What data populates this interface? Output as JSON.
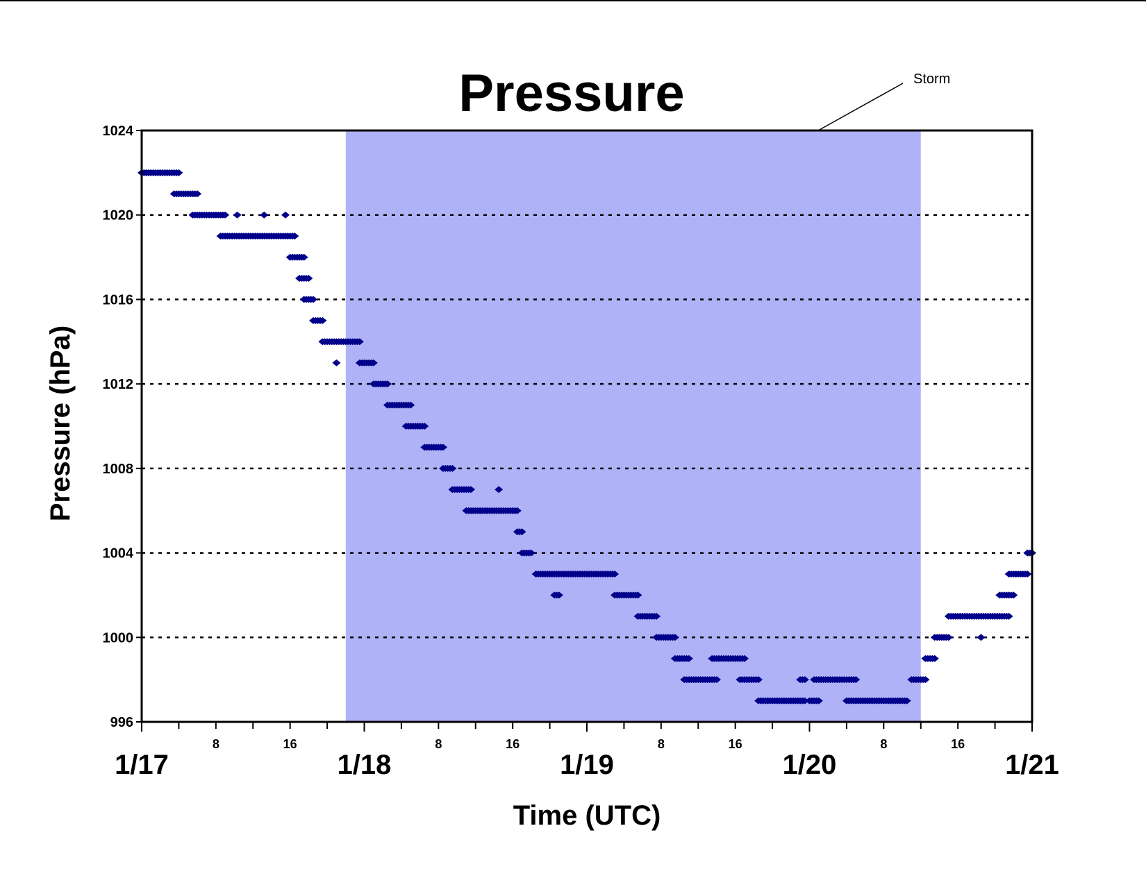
{
  "chart_data": {
    "type": "scatter",
    "title": "Pressure",
    "xlabel": "Time (UTC)",
    "ylabel": "Pressure (hPa)",
    "ylim": [
      996,
      1024
    ],
    "yticks": [
      "1024",
      "1020",
      "1016",
      "1012",
      "1008",
      "1004",
      "1000",
      "996"
    ],
    "xlim_hours": [
      0,
      96
    ],
    "x_date_labels": [
      "1/17",
      "1/18",
      "1/19",
      "1/20",
      "1/21"
    ],
    "x_hour_labels": [
      "8",
      "16"
    ],
    "grid": "horizontal dotted",
    "marker_color": "#00008b",
    "annotation": {
      "text": "Storm",
      "shaded_hours": [
        22,
        84
      ],
      "color": "#b0b2f8"
    },
    "series": [
      {
        "segments": [
          [
            0,
            4,
            1022
          ],
          [
            3.5,
            6,
            1021
          ],
          [
            5.5,
            9,
            1020
          ],
          [
            10.3,
            10.3,
            1020
          ],
          [
            13.2,
            13.2,
            1020
          ],
          [
            15.5,
            15.5,
            1020
          ],
          [
            8.5,
            16.5,
            1019
          ],
          [
            16,
            17.5,
            1018
          ],
          [
            17,
            18,
            1017
          ],
          [
            17.5,
            18.5,
            1016
          ],
          [
            18.5,
            19.5,
            1015
          ],
          [
            19.5,
            23.5,
            1014
          ],
          [
            21,
            21,
            1013
          ],
          [
            23.5,
            25,
            1013
          ],
          [
            25,
            26.5,
            1012
          ],
          [
            26.5,
            29,
            1011
          ],
          [
            28.5,
            30.5,
            1010
          ],
          [
            30.5,
            32.5,
            1009
          ],
          [
            32.5,
            33.5,
            1008
          ],
          [
            33.5,
            35.5,
            1007
          ],
          [
            38.5,
            38.5,
            1007
          ],
          [
            35,
            40.5,
            1006
          ],
          [
            40.5,
            41,
            1005
          ],
          [
            41,
            42,
            1004
          ],
          [
            42.5,
            51,
            1003
          ],
          [
            44.5,
            45,
            1002
          ],
          [
            51,
            53.5,
            1002
          ],
          [
            53.5,
            55.5,
            1001
          ],
          [
            55.5,
            57.5,
            1000
          ],
          [
            57.5,
            59,
            999
          ],
          [
            61.5,
            65,
            999
          ],
          [
            58.5,
            62,
            998
          ],
          [
            64.5,
            66.5,
            998
          ],
          [
            71,
            71.5,
            998
          ],
          [
            72.5,
            77,
            998
          ],
          [
            83,
            84.5,
            998
          ],
          [
            66.5,
            71.5,
            997
          ],
          [
            72,
            73,
            997
          ],
          [
            76,
            82.5,
            997
          ],
          [
            84.5,
            85.5,
            999
          ],
          [
            85.5,
            87,
            1000
          ],
          [
            87,
            93.5,
            1001
          ],
          [
            90.5,
            90.5,
            1000
          ],
          [
            92.5,
            94,
            1002
          ],
          [
            93.5,
            95.5,
            1003
          ],
          [
            95.5,
            96,
            1004
          ]
        ]
      }
    ]
  }
}
